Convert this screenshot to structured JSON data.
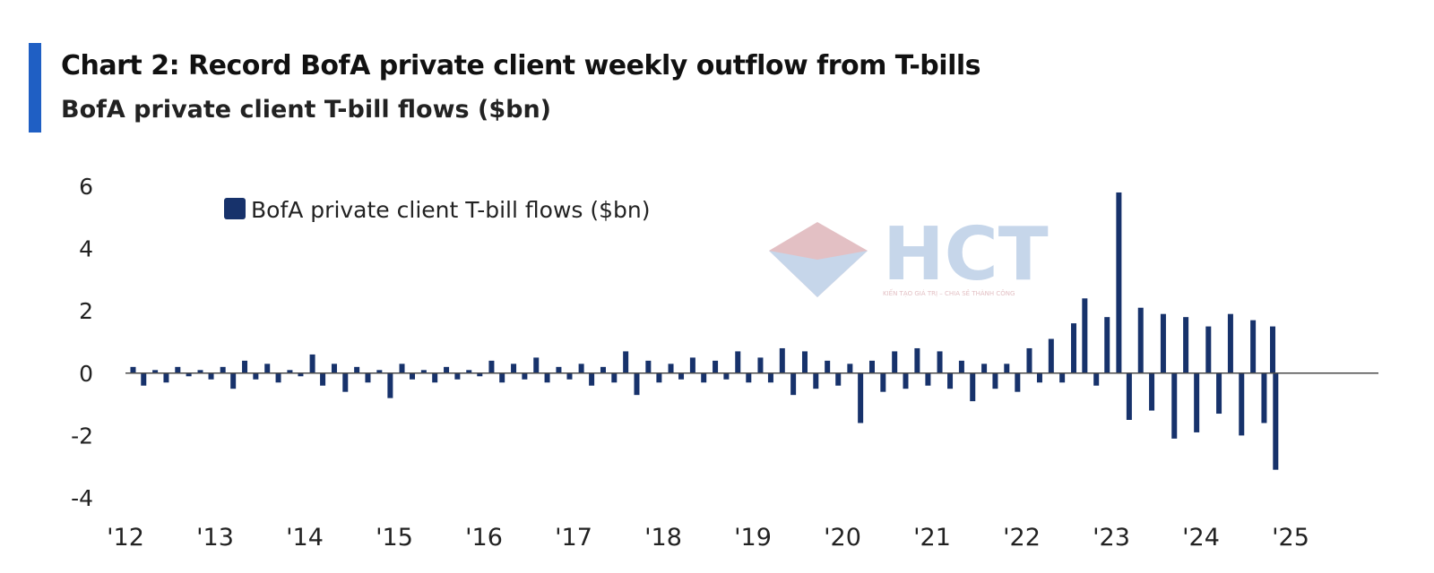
{
  "header": {
    "title": "Chart 2: Record BofA private client weekly outflow from T-bills",
    "subtitle": "BofA private client T-bill flows ($bn)"
  },
  "watermark": {
    "brand": "HCT",
    "tagline": "KIẾN TẠO GIÁ TRỊ – CHIA SẺ THÀNH CÔNG"
  },
  "colors": {
    "accent": "#1f5fc4",
    "series": "#17326b",
    "axis": "#222222",
    "watermark_red": "#f0b8b8",
    "watermark_blue": "#c6d6ea"
  },
  "chart_data": {
    "type": "bar",
    "title": "Chart 2: Record BofA private client weekly outflow from T-bills",
    "subtitle": "BofA private client T-bill flows ($bn)",
    "xlabel": "",
    "ylabel": "",
    "ylim": [
      -4,
      6
    ],
    "yticks": [
      "6",
      "4",
      "2",
      "0",
      "-2",
      "-4"
    ],
    "xticks": [
      "'12",
      "'13",
      "'14",
      "'15",
      "'16",
      "'17",
      "'18",
      "'19",
      "'20",
      "'21",
      "'22",
      "'23",
      "'24",
      "'25"
    ],
    "xrange": [
      "2012-01-01",
      "2025-01-01"
    ],
    "grid": false,
    "legend_position": "top-left",
    "x": [
      "2012-02-01",
      "2012-03-15",
      "2012-05-01",
      "2012-06-15",
      "2012-08-01",
      "2012-09-15",
      "2012-11-01",
      "2012-12-15",
      "2013-02-01",
      "2013-03-15",
      "2013-05-01",
      "2013-06-15",
      "2013-08-01",
      "2013-09-15",
      "2013-11-01",
      "2013-12-15",
      "2014-02-01",
      "2014-03-15",
      "2014-05-01",
      "2014-06-15",
      "2014-08-01",
      "2014-09-15",
      "2014-11-01",
      "2014-12-15",
      "2015-02-01",
      "2015-03-15",
      "2015-05-01",
      "2015-06-15",
      "2015-08-01",
      "2015-09-15",
      "2015-11-01",
      "2015-12-15",
      "2016-02-01",
      "2016-03-15",
      "2016-05-01",
      "2016-06-15",
      "2016-08-01",
      "2016-09-15",
      "2016-11-01",
      "2016-12-15",
      "2017-02-01",
      "2017-03-15",
      "2017-05-01",
      "2017-06-15",
      "2017-08-01",
      "2017-09-15",
      "2017-11-01",
      "2017-12-15",
      "2018-02-01",
      "2018-03-15",
      "2018-05-01",
      "2018-06-15",
      "2018-08-01",
      "2018-09-15",
      "2018-11-01",
      "2018-12-15",
      "2019-02-01",
      "2019-03-15",
      "2019-05-01",
      "2019-06-15",
      "2019-08-01",
      "2019-09-15",
      "2019-11-01",
      "2019-12-15",
      "2020-02-01",
      "2020-03-15",
      "2020-05-01",
      "2020-06-15",
      "2020-08-01",
      "2020-09-15",
      "2020-11-01",
      "2020-12-15",
      "2021-02-01",
      "2021-03-15",
      "2021-05-01",
      "2021-06-15",
      "2021-08-01",
      "2021-09-15",
      "2021-11-01",
      "2021-12-15",
      "2022-02-01",
      "2022-03-15",
      "2022-05-01",
      "2022-06-15",
      "2022-08-01",
      "2022-09-15",
      "2022-11-01",
      "2022-12-15",
      "2023-02-01",
      "2023-03-15",
      "2023-05-01",
      "2023-06-15",
      "2023-08-01",
      "2023-09-15",
      "2023-11-01",
      "2023-12-15",
      "2024-02-01",
      "2024-03-15",
      "2024-05-01",
      "2024-06-15",
      "2024-08-01",
      "2024-09-15",
      "2024-10-20",
      "2024-11-01"
    ],
    "series": [
      {
        "name": "BofA private client T-bill flows ($bn)",
        "values": [
          0.2,
          -0.4,
          0.1,
          -0.3,
          0.2,
          -0.1,
          0.1,
          -0.2,
          0.2,
          -0.5,
          0.4,
          -0.2,
          0.3,
          -0.3,
          0.1,
          -0.1,
          0.6,
          -0.4,
          0.3,
          -0.6,
          0.2,
          -0.3,
          0.1,
          -0.8,
          0.3,
          -0.2,
          0.1,
          -0.3,
          0.2,
          -0.2,
          0.1,
          -0.1,
          0.4,
          -0.3,
          0.3,
          -0.2,
          0.5,
          -0.3,
          0.2,
          -0.2,
          0.3,
          -0.4,
          0.2,
          -0.3,
          0.7,
          -0.7,
          0.4,
          -0.3,
          0.3,
          -0.2,
          0.5,
          -0.3,
          0.4,
          -0.2,
          0.7,
          -0.3,
          0.5,
          -0.3,
          0.8,
          -0.7,
          0.7,
          -0.5,
          0.4,
          -0.4,
          0.3,
          -1.6,
          0.4,
          -0.6,
          0.7,
          -0.5,
          0.8,
          -0.4,
          0.7,
          -0.5,
          0.4,
          -0.9,
          0.3,
          -0.5,
          0.3,
          -0.6,
          0.8,
          -0.3,
          1.1,
          -0.3,
          1.6,
          2.4,
          -0.4,
          1.8,
          5.8,
          -1.5,
          2.1,
          -1.2,
          1.9,
          -2.1,
          1.8,
          -1.9,
          1.5,
          -1.3,
          1.9,
          -2.0,
          1.7,
          -1.6,
          1.5,
          -3.1
        ]
      }
    ]
  }
}
